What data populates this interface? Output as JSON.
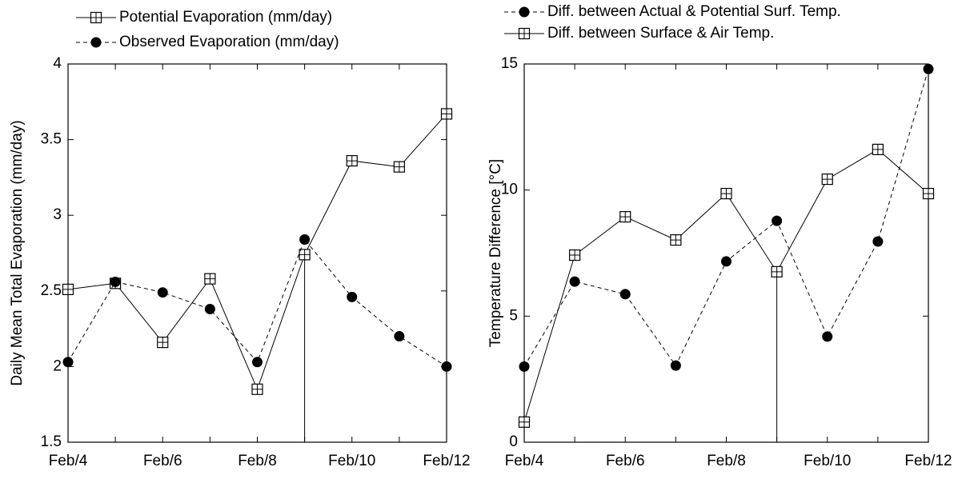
{
  "chart_data": [
    {
      "type": "line",
      "y_label": "Daily Mean Total Evaporation (mm/day)",
      "categories": [
        "Feb/4",
        null,
        "Feb/6",
        null,
        "Feb/8",
        null,
        "Feb/10",
        null,
        "Feb/12"
      ],
      "ylim": [
        1.5,
        4
      ],
      "yticks": [
        1.5,
        2,
        2.5,
        3,
        3.5,
        4
      ],
      "grid": false,
      "series": [
        {
          "name": "Potential Evaporation (mm/day)",
          "color": "#000000",
          "line_style": "solid",
          "marker": "crossed-square",
          "values": [
            2.51,
            2.55,
            2.16,
            2.58,
            1.85,
            2.74,
            3.36,
            3.32,
            3.67
          ]
        },
        {
          "name": "Observed Evaporation (mm/day)",
          "color": "#000000",
          "line_style": "dashed",
          "marker": "circle",
          "values": [
            2.03,
            2.56,
            2.49,
            2.38,
            2.03,
            2.84,
            2.46,
            2.2,
            2.0
          ]
        }
      ]
    },
    {
      "type": "line",
      "y_label": "Temperature Difference [°C]",
      "categories": [
        "Feb/4",
        null,
        "Feb/6",
        null,
        "Feb/8",
        null,
        "Feb/10",
        null,
        "Feb/12"
      ],
      "ylim": [
        0,
        15
      ],
      "yticks": [
        0,
        5,
        10,
        15
      ],
      "grid": false,
      "series": [
        {
          "name": "Diff. between Actual & Potential Surf. Temp.",
          "color": "#000000",
          "line_style": "dashed",
          "marker": "circle",
          "values": [
            3.0,
            6.37,
            5.87,
            3.04,
            7.17,
            8.78,
            4.19,
            7.96,
            14.8
          ]
        },
        {
          "name": "Diff. between Surface & Air Temp.",
          "color": "#000000",
          "line_style": "solid",
          "marker": "crossed-square",
          "values": [
            0.8,
            7.42,
            8.94,
            8.02,
            9.86,
            6.76,
            10.43,
            11.61,
            9.86
          ]
        }
      ]
    }
  ]
}
